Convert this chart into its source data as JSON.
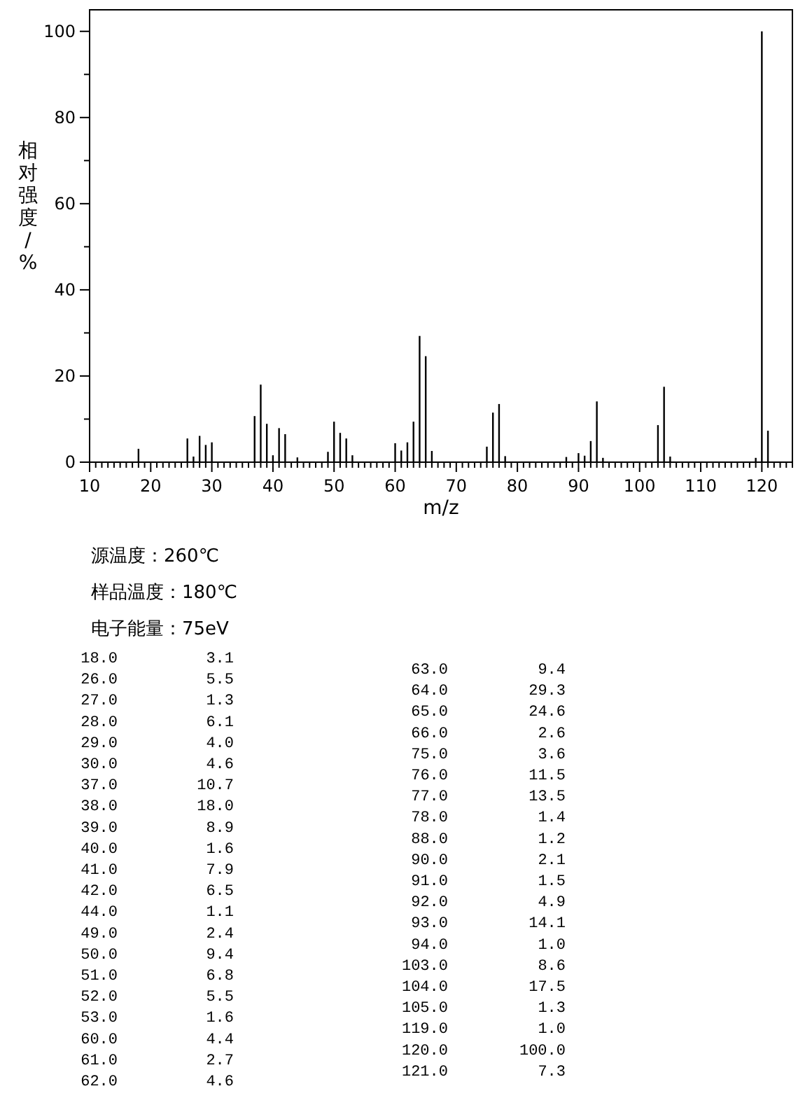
{
  "chart_data": [
    {
      "type": "bar",
      "xlabel": "m/z",
      "ylabel": "相对强度/%",
      "x": [
        18.0,
        26.0,
        27.0,
        28.0,
        29.0,
        30.0,
        37.0,
        38.0,
        39.0,
        40.0,
        41.0,
        42.0,
        44.0,
        49.0,
        50.0,
        51.0,
        52.0,
        53.0,
        60.0,
        61.0,
        62.0,
        63.0,
        64.0,
        65.0,
        66.0,
        75.0,
        76.0,
        77.0,
        78.0,
        88.0,
        90.0,
        91.0,
        92.0,
        93.0,
        94.0,
        103.0,
        104.0,
        105.0,
        119.0,
        120.0,
        121.0
      ],
      "values": [
        3.1,
        5.5,
        1.3,
        6.1,
        4.0,
        4.6,
        10.7,
        18.0,
        8.9,
        1.6,
        7.9,
        6.5,
        1.1,
        2.4,
        9.4,
        6.8,
        5.5,
        1.6,
        4.4,
        2.7,
        4.6,
        9.4,
        29.3,
        24.6,
        2.6,
        3.6,
        11.5,
        13.5,
        1.4,
        1.2,
        2.1,
        1.5,
        4.9,
        14.1,
        1.0,
        8.6,
        17.5,
        1.3,
        1.0,
        100.0,
        7.3
      ],
      "color": "#000000",
      "xlim": [
        10,
        125
      ],
      "ylim": [
        0,
        105
      ],
      "xticks": [
        10,
        {
          "value": 11,
          "label": null
        },
        {
          "value": 12,
          "label": null
        },
        {
          "value": 13,
          "label": null
        },
        {
          "value": 14,
          "label": null
        },
        {
          "value": 15,
          "label": null
        },
        {
          "value": 16,
          "label": null
        },
        {
          "value": 17,
          "label": null
        },
        {
          "value": 18,
          "label": null
        },
        {
          "value": 19,
          "label": null
        },
        20,
        {
          "value": 21,
          "label": null
        },
        {
          "value": 22,
          "label": null
        },
        {
          "value": 23,
          "label": null
        },
        {
          "value": 24,
          "label": null
        },
        {
          "value": 25,
          "label": null
        },
        {
          "value": 26,
          "label": null
        },
        {
          "value": 27,
          "label": null
        },
        {
          "value": 28,
          "label": null
        },
        {
          "value": 29,
          "label": null
        },
        30,
        {
          "value": 31,
          "label": null
        },
        {
          "value": 32,
          "label": null
        },
        {
          "value": 33,
          "label": null
        },
        {
          "value": 34,
          "label": null
        },
        {
          "value": 35,
          "label": null
        },
        {
          "value": 36,
          "label": null
        },
        {
          "value": 37,
          "label": null
        },
        {
          "value": 38,
          "label": null
        },
        {
          "value": 39,
          "label": null
        },
        40,
        {
          "value": 41,
          "label": null
        },
        {
          "value": 42,
          "label": null
        },
        {
          "value": 43,
          "label": null
        },
        {
          "value": 44,
          "label": null
        },
        {
          "value": 45,
          "label": null
        },
        {
          "value": 46,
          "label": null
        },
        {
          "value": 47,
          "label": null
        },
        {
          "value": 48,
          "label": null
        },
        {
          "value": 49,
          "label": null
        },
        50,
        {
          "value": 51,
          "label": null
        },
        {
          "value": 52,
          "label": null
        },
        {
          "value": 53,
          "label": null
        },
        {
          "value": 54,
          "label": null
        },
        {
          "value": 55,
          "label": null
        },
        {
          "value": 56,
          "label": null
        },
        {
          "value": 57,
          "label": null
        },
        {
          "value": 58,
          "label": null
        },
        {
          "value": 59,
          "label": null
        },
        60,
        {
          "value": 61,
          "label": null
        },
        {
          "value": 62,
          "label": null
        },
        {
          "value": 63,
          "label": null
        },
        {
          "value": 64,
          "label": null
        },
        {
          "value": 65,
          "label": null
        },
        {
          "value": 66,
          "label": null
        },
        {
          "value": 67,
          "label": null
        },
        {
          "value": 68,
          "label": null
        },
        {
          "value": 69,
          "label": null
        },
        70,
        {
          "value": 71,
          "label": null
        },
        {
          "value": 72,
          "label": null
        },
        {
          "value": 73,
          "label": null
        },
        {
          "value": 74,
          "label": null
        },
        {
          "value": 75,
          "label": null
        },
        {
          "value": 76,
          "label": null
        },
        {
          "value": 77,
          "label": null
        },
        {
          "value": 78,
          "label": null
        },
        {
          "value": 79,
          "label": null
        },
        80,
        {
          "value": 81,
          "label": null
        },
        {
          "value": 82,
          "label": null
        },
        {
          "value": 83,
          "label": null
        },
        {
          "value": 84,
          "label": null
        },
        {
          "value": 85,
          "label": null
        },
        {
          "value": 86,
          "label": null
        },
        {
          "value": 87,
          "label": null
        },
        {
          "value": 88,
          "label": null
        },
        {
          "value": 89,
          "label": null
        },
        90,
        {
          "value": 91,
          "label": null
        },
        {
          "value": 92,
          "label": null
        },
        {
          "value": 93,
          "label": null
        },
        {
          "value": 94,
          "label": null
        },
        {
          "value": 95,
          "label": null
        },
        {
          "value": 96,
          "label": null
        },
        {
          "value": 97,
          "label": null
        },
        {
          "value": 98,
          "label": null
        },
        {
          "value": 99,
          "label": null
        },
        100,
        {
          "value": 101,
          "label": null
        },
        {
          "value": 102,
          "label": null
        },
        {
          "value": 103,
          "label": null
        },
        {
          "value": 104,
          "label": null
        },
        {
          "value": 105,
          "label": null
        },
        {
          "value": 106,
          "label": null
        },
        {
          "value": 107,
          "label": null
        },
        {
          "value": 108,
          "label": null
        },
        {
          "value": 109,
          "label": null
        },
        110,
        {
          "value": 111,
          "label": null
        },
        {
          "value": 112,
          "label": null
        },
        {
          "value": 113,
          "label": null
        },
        {
          "value": 114,
          "label": null
        },
        {
          "value": 115,
          "label": null
        },
        {
          "value": 116,
          "label": null
        },
        {
          "value": 117,
          "label": null
        },
        {
          "value": 118,
          "label": null
        },
        {
          "value": 119,
          "label": null
        },
        120,
        {
          "value": 121,
          "label": null
        },
        {
          "value": 122,
          "label": null
        },
        {
          "value": 123,
          "label": null
        },
        {
          "value": 124,
          "label": null
        },
        {
          "value": 125,
          "label": null
        }
      ],
      "yticks": [
        0,
        {
          "value": 10,
          "label": null
        },
        20,
        {
          "value": 30,
          "label": null
        },
        40,
        {
          "value": 50,
          "label": null
        },
        60,
        {
          "value": 70,
          "label": null
        },
        80,
        {
          "value": 90,
          "label": null
        },
        100
      ],
      "annotations": [
        "源温度：260℃",
        "样品温度：180℃",
        "电子能量：75eV"
      ]
    },
    {
      "type": "other",
      "categories": [
        "18.0",
        "26.0",
        "27.0",
        "28.0",
        "29.0",
        "30.0",
        "37.0",
        "38.0",
        "39.0",
        "40.0",
        "41.0",
        "42.0",
        "44.0",
        "49.0",
        "50.0",
        "51.0",
        "52.0",
        "53.0",
        "60.0",
        "61.0",
        "62.0",
        "63.0",
        "64.0",
        "65.0",
        "66.0",
        "75.0",
        "76.0",
        "77.0",
        "78.0",
        "88.0",
        "90.0",
        "91.0",
        "92.0",
        "93.0",
        "94.0",
        "103.0",
        "104.0",
        "105.0",
        "119.0",
        "120.0",
        "121.0"
      ],
      "value_labels": [
        "3.1",
        "5.5",
        "1.3",
        "6.1",
        "4.0",
        "4.6",
        "10.7",
        "18.0",
        "8.9",
        "1.6",
        "7.9",
        "6.5",
        "1.1",
        "2.4",
        "9.4",
        "6.8",
        "5.5",
        "1.6",
        "4.4",
        "2.7",
        "4.6",
        "9.4",
        "29.3",
        "24.6",
        "2.6",
        "3.6",
        "11.5",
        "13.5",
        "1.4",
        "1.2",
        "2.1",
        "1.5",
        "4.9",
        "14.1",
        "1.0",
        "8.6",
        "17.5",
        "1.3",
        "1.0",
        "100.0",
        "7.3"
      ]
    }
  ]
}
